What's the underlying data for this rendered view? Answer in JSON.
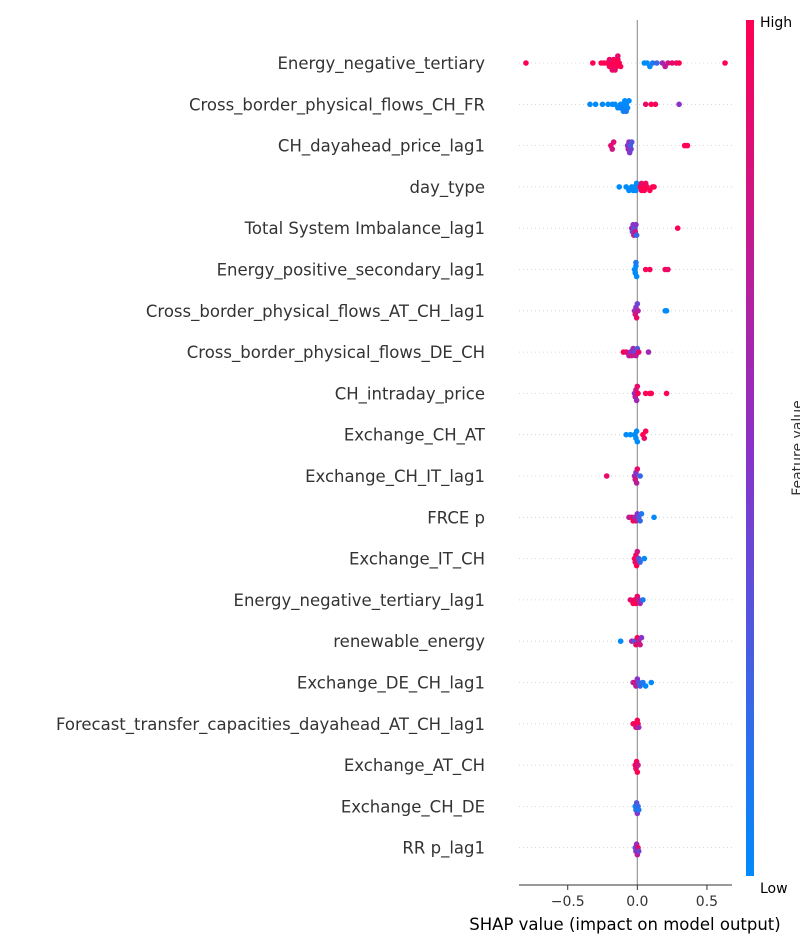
{
  "chart_data": {
    "type": "scatter",
    "subtype": "shap-beeswarm",
    "xlabel": "SHAP value (impact on model output)",
    "xlim": [
      -0.85,
      0.68
    ],
    "x_ticks": [
      -0.5,
      0.0,
      0.5
    ],
    "x_tick_labels": [
      "−0.5",
      "0.0",
      "0.5"
    ],
    "colorbar": {
      "label": "Feature value",
      "high_label": "High",
      "low_label": "Low",
      "low_color": "#008bfb",
      "mid_color": "#8a32c9",
      "high_color": "#ff0052"
    },
    "zero_line_color": "#999999",
    "grid_color": "#cccccc",
    "features": [
      {
        "name": "Energy_negative_tertiary",
        "points": [
          [
            -0.8,
            1
          ],
          [
            -0.32,
            1
          ],
          [
            -0.26,
            1
          ],
          [
            -0.24,
            1
          ],
          [
            -0.22,
            1
          ],
          [
            -0.2,
            1
          ],
          [
            -0.19,
            1
          ],
          [
            -0.18,
            1
          ],
          [
            -0.17,
            1
          ],
          [
            -0.16,
            1
          ],
          [
            -0.15,
            1
          ],
          [
            -0.14,
            1
          ],
          [
            -0.13,
            1
          ],
          [
            -0.12,
            1
          ],
          [
            -0.2,
            0.9
          ],
          [
            -0.18,
            0.9
          ],
          [
            -0.16,
            0.9
          ],
          [
            -0.14,
            0.9
          ],
          [
            0.05,
            0
          ],
          [
            0.07,
            0
          ],
          [
            0.09,
            0
          ],
          [
            0.11,
            0.1
          ],
          [
            0.14,
            0.2
          ],
          [
            0.18,
            0.6
          ],
          [
            0.2,
            0.7
          ],
          [
            0.22,
            0.8
          ],
          [
            0.25,
            0.9
          ],
          [
            0.28,
            0.9
          ],
          [
            0.3,
            1
          ],
          [
            0.63,
            1
          ]
        ]
      },
      {
        "name": "Cross_border_physical_flows_CH_FR",
        "points": [
          [
            -0.34,
            0
          ],
          [
            -0.3,
            0
          ],
          [
            -0.25,
            0
          ],
          [
            -0.21,
            0
          ],
          [
            -0.18,
            0
          ],
          [
            -0.16,
            0
          ],
          [
            -0.14,
            0
          ],
          [
            -0.12,
            0
          ],
          [
            -0.11,
            0
          ],
          [
            -0.1,
            0
          ],
          [
            -0.09,
            0
          ],
          [
            -0.08,
            0
          ],
          [
            -0.07,
            0
          ],
          [
            -0.06,
            0
          ],
          [
            -0.12,
            0.05
          ],
          [
            -0.1,
            0.05
          ],
          [
            -0.08,
            0.1
          ],
          [
            0.06,
            0.9
          ],
          [
            0.1,
            1
          ],
          [
            0.13,
            0.95
          ],
          [
            0.3,
            0.5
          ]
        ]
      },
      {
        "name": "CH_dayahead_price_lag1",
        "points": [
          [
            -0.19,
            0.9
          ],
          [
            -0.18,
            0.8
          ],
          [
            -0.17,
            0.85
          ],
          [
            -0.07,
            0.5
          ],
          [
            -0.065,
            0.6
          ],
          [
            -0.06,
            0.55
          ],
          [
            -0.055,
            0.45
          ],
          [
            -0.05,
            0.2
          ],
          [
            -0.045,
            0.4
          ],
          [
            -0.04,
            0.3
          ],
          [
            0.34,
            1
          ],
          [
            0.36,
            1
          ]
        ]
      },
      {
        "name": "day_type",
        "points": [
          [
            -0.13,
            0
          ],
          [
            -0.08,
            0
          ],
          [
            -0.06,
            0
          ],
          [
            -0.04,
            0
          ],
          [
            -0.03,
            0
          ],
          [
            -0.02,
            0
          ],
          [
            -0.01,
            0
          ],
          [
            -0.005,
            0
          ],
          [
            0.02,
            1
          ],
          [
            0.03,
            1
          ],
          [
            0.04,
            1
          ],
          [
            0.05,
            1
          ],
          [
            0.07,
            1
          ],
          [
            0.09,
            1
          ],
          [
            0.11,
            1
          ],
          [
            0.12,
            1
          ],
          [
            0.03,
            0.9
          ],
          [
            0.06,
            0.95
          ]
        ]
      },
      {
        "name": "Total System Imbalance_lag1",
        "points": [
          [
            -0.04,
            0.6
          ],
          [
            -0.035,
            0.4
          ],
          [
            -0.03,
            0.5
          ],
          [
            -0.025,
            0.7
          ],
          [
            -0.02,
            0.3
          ],
          [
            -0.015,
            0.8
          ],
          [
            -0.01,
            0.5
          ],
          [
            -0.005,
            0.2
          ],
          [
            0.29,
            1
          ]
        ]
      },
      {
        "name": "Energy_positive_secondary_lag1",
        "points": [
          [
            -0.02,
            0
          ],
          [
            -0.015,
            0
          ],
          [
            -0.01,
            0
          ],
          [
            -0.005,
            0
          ],
          [
            -0.01,
            0.1
          ],
          [
            0.06,
            1
          ],
          [
            0.09,
            0.95
          ],
          [
            0.2,
            1
          ],
          [
            0.22,
            0.9
          ]
        ]
      },
      {
        "name": "Cross_border_physical_flows_AT_CH_lag1",
        "points": [
          [
            -0.02,
            0.6
          ],
          [
            -0.015,
            0.8
          ],
          [
            -0.01,
            0.5
          ],
          [
            -0.005,
            0.9
          ],
          [
            0,
            0.4
          ],
          [
            0.005,
            0.7
          ],
          [
            0.2,
            0
          ],
          [
            0.21,
            0
          ]
        ]
      },
      {
        "name": "Cross_border_physical_flows_DE_CH",
        "points": [
          [
            -0.1,
            1
          ],
          [
            -0.08,
            0.9
          ],
          [
            -0.06,
            0.7
          ],
          [
            -0.05,
            0.5
          ],
          [
            -0.04,
            0.8
          ],
          [
            -0.03,
            0.6
          ],
          [
            -0.02,
            0.4
          ],
          [
            -0.01,
            0.7
          ],
          [
            0,
            0.3
          ],
          [
            0.01,
            0.9
          ],
          [
            0.08,
            0.6
          ]
        ]
      },
      {
        "name": "CH_intraday_price",
        "points": [
          [
            -0.02,
            0.5
          ],
          [
            -0.015,
            0.7
          ],
          [
            -0.01,
            0.8
          ],
          [
            -0.005,
            0.6
          ],
          [
            0,
            0.9
          ],
          [
            0.005,
            1
          ],
          [
            0.06,
            1
          ],
          [
            0.09,
            0.95
          ],
          [
            0.1,
            1
          ],
          [
            0.21,
            1
          ]
        ]
      },
      {
        "name": "Exchange_CH_AT",
        "points": [
          [
            -0.08,
            0
          ],
          [
            -0.05,
            0
          ],
          [
            -0.02,
            0
          ],
          [
            -0.01,
            0
          ],
          [
            -0.005,
            0
          ],
          [
            0,
            0
          ],
          [
            0.04,
            1
          ],
          [
            0.05,
            0.9
          ],
          [
            0.06,
            1
          ]
        ]
      },
      {
        "name": "Exchange_CH_IT_lag1",
        "points": [
          [
            -0.22,
            0.9
          ],
          [
            -0.02,
            0.6
          ],
          [
            -0.015,
            0.8
          ],
          [
            -0.01,
            0.5
          ],
          [
            -0.005,
            0.7
          ],
          [
            0,
            0.9
          ],
          [
            0.02,
            0.2
          ]
        ]
      },
      {
        "name": "FRCE p",
        "points": [
          [
            -0.06,
            0.7
          ],
          [
            -0.04,
            0.9
          ],
          [
            -0.03,
            1
          ],
          [
            -0.02,
            0.6
          ],
          [
            -0.01,
            0.8
          ],
          [
            0,
            0.5
          ],
          [
            0.01,
            0.3
          ],
          [
            0.02,
            0.2
          ],
          [
            0.03,
            0.1
          ],
          [
            0.12,
            0
          ]
        ]
      },
      {
        "name": "Exchange_IT_CH",
        "points": [
          [
            -0.02,
            1
          ],
          [
            -0.015,
            0.9
          ],
          [
            -0.01,
            0.95
          ],
          [
            -0.005,
            1
          ],
          [
            0,
            0.8
          ],
          [
            0.01,
            0.3
          ],
          [
            0.02,
            0.2
          ],
          [
            0.05,
            0
          ]
        ]
      },
      {
        "name": "Energy_negative_tertiary_lag1",
        "points": [
          [
            -0.05,
            0.9
          ],
          [
            -0.03,
            1
          ],
          [
            -0.02,
            0.95
          ],
          [
            -0.01,
            1
          ],
          [
            0,
            0.9
          ],
          [
            0.01,
            0.7
          ],
          [
            0.02,
            0.6
          ],
          [
            0.04,
            0.1
          ]
        ]
      },
      {
        "name": "renewable_energy",
        "points": [
          [
            -0.12,
            0
          ],
          [
            -0.04,
            0.6
          ],
          [
            -0.02,
            0.3
          ],
          [
            -0.01,
            0.9
          ],
          [
            0,
            1
          ],
          [
            0.01,
            0.7
          ],
          [
            0.02,
            0.8
          ],
          [
            0.03,
            0.5
          ]
        ]
      },
      {
        "name": "Exchange_DE_CH_lag1",
        "points": [
          [
            -0.03,
            0.6
          ],
          [
            -0.02,
            0.8
          ],
          [
            -0.01,
            0.7
          ],
          [
            0,
            0.5
          ],
          [
            0.01,
            0.3
          ],
          [
            0.02,
            0.2
          ],
          [
            0.04,
            0.1
          ],
          [
            0.06,
            0
          ],
          [
            0.1,
            0
          ]
        ]
      },
      {
        "name": "Forecast_transfer_capacities_dayahead_AT_CH_lag1",
        "points": [
          [
            -0.03,
            0.9
          ],
          [
            -0.02,
            1
          ],
          [
            -0.01,
            0.8
          ],
          [
            0,
            0.95
          ],
          [
            0.005,
            1
          ],
          [
            0.01,
            0.6
          ]
        ]
      },
      {
        "name": "Exchange_AT_CH",
        "points": [
          [
            -0.015,
            1
          ],
          [
            -0.01,
            0.9
          ],
          [
            -0.005,
            0.95
          ],
          [
            0,
            1
          ],
          [
            0.005,
            0.8
          ]
        ]
      },
      {
        "name": "Exchange_CH_DE",
        "points": [
          [
            -0.015,
            0
          ],
          [
            -0.01,
            0.1
          ],
          [
            -0.005,
            0.3
          ],
          [
            0,
            0.5
          ],
          [
            0.005,
            0.2
          ],
          [
            0.01,
            0.1
          ]
        ]
      },
      {
        "name": "RR p_lag1",
        "points": [
          [
            -0.015,
            0.3
          ],
          [
            -0.01,
            0.5
          ],
          [
            -0.005,
            0.6
          ],
          [
            0,
            0.7
          ],
          [
            0.005,
            0.9
          ],
          [
            0.01,
            0.4
          ]
        ]
      }
    ]
  }
}
